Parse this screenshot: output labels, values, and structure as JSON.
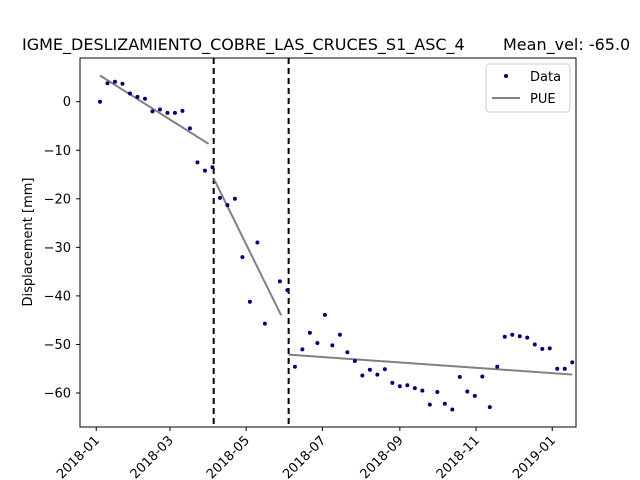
{
  "chart_data": {
    "type": "scatter",
    "title": "IGME_DESLIZAMIENTO_COBRE_LAS_CRUCES_S1_ASC_4",
    "subtitle": "Mean_vel: -65.0",
    "xlabel": "",
    "ylabel": "Displacement [mm]",
    "xlim": [
      "2017-12-19",
      "2019-01-20"
    ],
    "ylim": [
      -67,
      9
    ],
    "grid": false,
    "legend_position": "top-right",
    "xticks": [
      "2018-01",
      "2018-03",
      "2018-05",
      "2018-07",
      "2018-09",
      "2018-11",
      "2019-01"
    ],
    "yticks": [
      0,
      -10,
      -20,
      -30,
      -40,
      -50,
      -60
    ],
    "vertical_lines": [
      "2018-04-05",
      "2018-06-04"
    ],
    "colors": {
      "data": "#00007f",
      "pue": "#808080"
    },
    "series": [
      {
        "name": "Data",
        "kind": "scatter",
        "points": [
          [
            "2018-01-04",
            0.0
          ],
          [
            "2018-01-10",
            3.8
          ],
          [
            "2018-01-16",
            4.1
          ],
          [
            "2018-01-22",
            3.7
          ],
          [
            "2018-01-28",
            1.7
          ],
          [
            "2018-02-03",
            1.0
          ],
          [
            "2018-02-09",
            0.6
          ],
          [
            "2018-02-15",
            -2.0
          ],
          [
            "2018-02-21",
            -1.6
          ],
          [
            "2018-02-27",
            -2.3
          ],
          [
            "2018-03-05",
            -2.3
          ],
          [
            "2018-03-11",
            -1.9
          ],
          [
            "2018-03-17",
            -5.5
          ],
          [
            "2018-03-23",
            -12.5
          ],
          [
            "2018-03-29",
            -14.2
          ],
          [
            "2018-04-04",
            -13.5
          ],
          [
            "2018-04-10",
            -19.8
          ],
          [
            "2018-04-16",
            -21.3
          ],
          [
            "2018-04-22",
            -20.0
          ],
          [
            "2018-04-28",
            -32.0
          ],
          [
            "2018-05-04",
            -41.2
          ],
          [
            "2018-05-10",
            -29.0
          ],
          [
            "2018-05-16",
            -45.7
          ],
          [
            "2018-05-28",
            -37.0
          ],
          [
            "2018-06-03",
            -38.8
          ],
          [
            "2018-06-09",
            -54.6
          ],
          [
            "2018-06-15",
            -51.0
          ],
          [
            "2018-06-21",
            -47.6
          ],
          [
            "2018-06-27",
            -49.7
          ],
          [
            "2018-07-03",
            -43.9
          ],
          [
            "2018-07-09",
            -50.2
          ],
          [
            "2018-07-15",
            -48.0
          ],
          [
            "2018-07-21",
            -51.6
          ],
          [
            "2018-07-27",
            -53.4
          ],
          [
            "2018-08-02",
            -56.4
          ],
          [
            "2018-08-08",
            -55.2
          ],
          [
            "2018-08-14",
            -56.2
          ],
          [
            "2018-08-20",
            -55.1
          ],
          [
            "2018-08-26",
            -57.9
          ],
          [
            "2018-09-01",
            -58.6
          ],
          [
            "2018-09-07",
            -58.4
          ],
          [
            "2018-09-13",
            -59.0
          ],
          [
            "2018-09-19",
            -59.5
          ],
          [
            "2018-09-25",
            -62.4
          ],
          [
            "2018-10-01",
            -59.8
          ],
          [
            "2018-10-07",
            -62.2
          ],
          [
            "2018-10-13",
            -63.4
          ],
          [
            "2018-10-19",
            -56.7
          ],
          [
            "2018-10-25",
            -59.7
          ],
          [
            "2018-10-31",
            -60.6
          ],
          [
            "2018-11-06",
            -56.6
          ],
          [
            "2018-11-12",
            -62.9
          ],
          [
            "2018-11-18",
            -54.6
          ],
          [
            "2018-11-24",
            -48.4
          ],
          [
            "2018-11-30",
            -48.0
          ],
          [
            "2018-12-06",
            -48.3
          ],
          [
            "2018-12-12",
            -48.6
          ],
          [
            "2018-12-18",
            -50.0
          ],
          [
            "2018-12-24",
            -50.9
          ],
          [
            "2018-12-30",
            -50.8
          ],
          [
            "2019-01-05",
            -55.0
          ],
          [
            "2019-01-11",
            -55.0
          ],
          [
            "2019-01-17",
            -53.7
          ]
        ]
      },
      {
        "name": "PUE",
        "kind": "line",
        "segments": [
          [
            [
              "2018-01-04",
              5.4
            ],
            [
              "2018-04-01",
              -8.7
            ]
          ],
          [
            "_"
          ],
          [
            [
              "2018-04-05",
              -15.8
            ],
            [
              "2018-05-29",
              -44.0
            ]
          ],
          [
            [
              "2018-06-04",
              -52.1
            ],
            [
              "2019-01-17",
              -56.2
            ]
          ]
        ]
      }
    ]
  }
}
